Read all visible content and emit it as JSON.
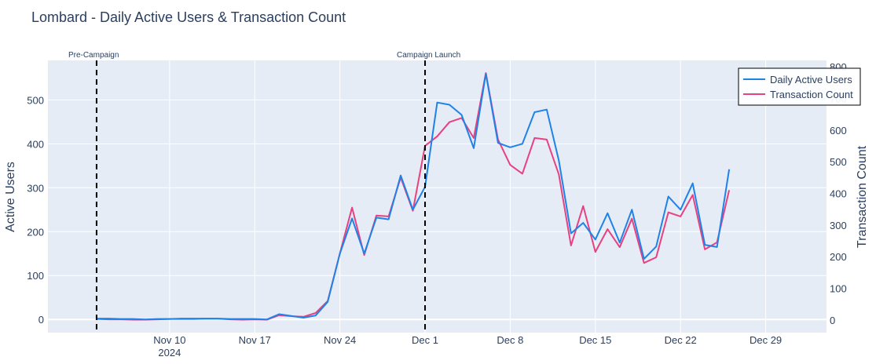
{
  "chart_data": {
    "type": "line",
    "title": "Lombard - Daily Active Users & Transaction Count",
    "ylabel": "Active Users",
    "y2label": "Transaction Count",
    "ylim": [
      -30,
      590
    ],
    "y2lim": [
      -40,
      820
    ],
    "yticks": [
      0,
      100,
      200,
      300,
      400,
      500
    ],
    "y2ticks": [
      0,
      100,
      200,
      300,
      400,
      500,
      600,
      700,
      800
    ],
    "x_start_day": 0,
    "xlim": [
      -4,
      60
    ],
    "xticks": [
      {
        "day": 6,
        "label": "Nov 10",
        "sub": "2024"
      },
      {
        "day": 13,
        "label": "Nov 17",
        "sub": ""
      },
      {
        "day": 20,
        "label": "Nov 24",
        "sub": ""
      },
      {
        "day": 27,
        "label": "Dec 1",
        "sub": ""
      },
      {
        "day": 34,
        "label": "Dec 8",
        "sub": ""
      },
      {
        "day": 41,
        "label": "Dec 15",
        "sub": ""
      },
      {
        "day": 48,
        "label": "Dec 22",
        "sub": ""
      },
      {
        "day": 55,
        "label": "Dec 29",
        "sub": ""
      }
    ],
    "annotations": [
      {
        "day": 0,
        "label": "Pre-Campaign"
      },
      {
        "day": 27,
        "label": "Campaign Launch"
      }
    ],
    "series": [
      {
        "name": "Daily Active Users",
        "axis": "y",
        "color": "#1f82e8",
        "values": [
          2,
          2,
          1,
          1,
          0,
          1,
          1,
          2,
          2,
          2,
          2,
          1,
          1,
          1,
          0,
          12,
          8,
          4,
          9,
          40,
          150,
          230,
          150,
          232,
          228,
          328,
          250,
          302,
          494,
          489,
          466,
          390,
          560,
          402,
          392,
          400,
          472,
          478,
          362,
          196,
          220,
          182,
          242,
          175,
          250,
          138,
          166,
          280,
          250,
          310,
          170,
          165,
          342
        ]
      },
      {
        "name": "Transaction Count",
        "axis": "y2",
        "color": "#e8417f",
        "values": [
          3,
          2,
          2,
          1,
          1,
          2,
          3,
          3,
          3,
          4,
          4,
          2,
          1,
          2,
          1,
          15,
          12,
          10,
          22,
          60,
          210,
          355,
          205,
          330,
          327,
          450,
          345,
          550,
          580,
          625,
          638,
          575,
          780,
          570,
          490,
          462,
          575,
          570,
          460,
          235,
          360,
          215,
          287,
          230,
          320,
          180,
          198,
          340,
          327,
          395,
          223,
          245,
          410
        ]
      }
    ]
  }
}
